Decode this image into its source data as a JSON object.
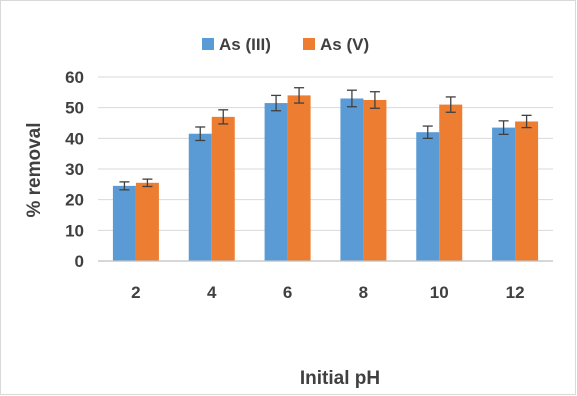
{
  "chart_data": {
    "type": "bar",
    "categories": [
      "2",
      "4",
      "6",
      "8",
      "10",
      "12"
    ],
    "series": [
      {
        "name": "As (III)",
        "color": "#5b9bd5",
        "values": [
          24.5,
          41.5,
          51.5,
          53,
          42,
          43.5
        ],
        "errors": [
          1.3,
          2.2,
          2.5,
          2.7,
          2.0,
          2.2
        ]
      },
      {
        "name": "As (V)",
        "color": "#ed7d31",
        "values": [
          25.5,
          47,
          54,
          52.5,
          51,
          45.5
        ],
        "errors": [
          1.2,
          2.3,
          2.5,
          2.7,
          2.5,
          2.0
        ]
      }
    ],
    "ylabel": "% removal",
    "xlabel": "Initial pH",
    "ylim": [
      0,
      60
    ],
    "yticks": [
      "0",
      "10",
      "20",
      "30",
      "40",
      "50",
      "60"
    ],
    "grid": true,
    "legend_position": "top"
  }
}
